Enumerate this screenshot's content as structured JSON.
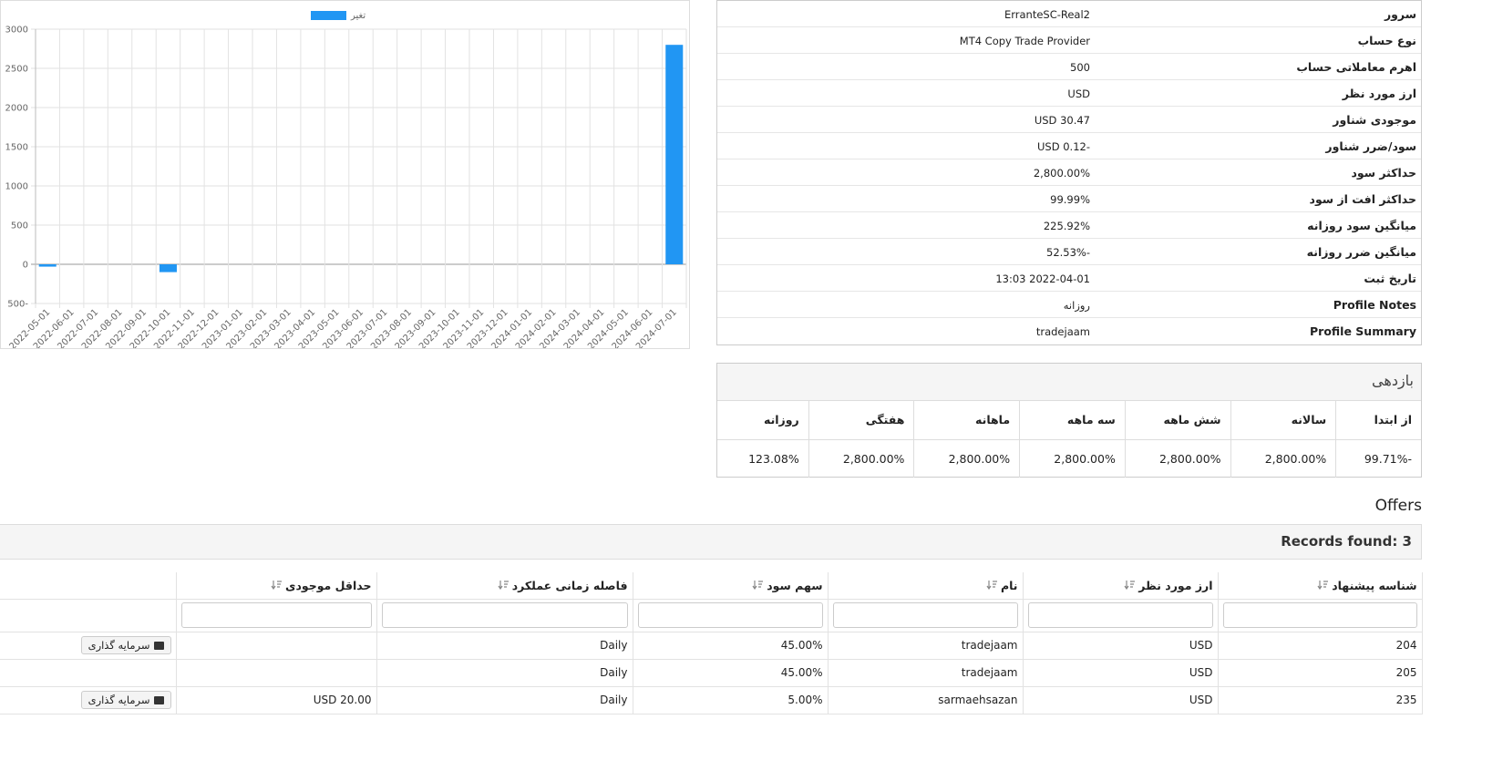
{
  "chart_data": {
    "type": "bar",
    "categories": [
      "2022-05-01",
      "2022-06-01",
      "2022-07-01",
      "2022-08-01",
      "2022-09-01",
      "2022-10-01",
      "2022-11-01",
      "2022-12-01",
      "2023-01-01",
      "2023-02-01",
      "2023-03-01",
      "2023-04-01",
      "2023-05-01",
      "2023-06-01",
      "2023-07-01",
      "2023-08-01",
      "2023-09-01",
      "2023-10-01",
      "2023-11-01",
      "2023-12-01",
      "2024-01-01",
      "2024-02-01",
      "2024-03-01",
      "2024-04-01",
      "2024-05-01",
      "2024-06-01",
      "2024-07-01"
    ],
    "series": [
      {
        "name": "تغیر",
        "color": "#2196f3",
        "values": [
          -30,
          0,
          0,
          0,
          0,
          -100,
          0,
          0,
          0,
          0,
          0,
          0,
          0,
          0,
          0,
          0,
          0,
          0,
          0,
          0,
          0,
          0,
          0,
          0,
          0,
          0,
          2800
        ]
      }
    ],
    "ylim": [
      -500,
      3000
    ],
    "yticks": [
      {
        "value": -500,
        "label": "500-"
      },
      0,
      500,
      1000,
      1500,
      2000,
      2500,
      3000
    ],
    "grid": true,
    "legend": "top"
  },
  "account": {
    "rows": [
      {
        "label": "سرور",
        "value": "ErranteSC-Real2"
      },
      {
        "label": "نوع حساب",
        "value": "MT4 Copy Trade Provider"
      },
      {
        "label": "اهرم معاملاتی حساب",
        "value": "500"
      },
      {
        "label": "ارز مورد نظر",
        "value": "USD"
      },
      {
        "label": "موجودی شناور",
        "value": "USD 30.47"
      },
      {
        "label": "سود/ضرر شناور",
        "value": "USD 0.12-"
      },
      {
        "label": "حداکثر سود",
        "value": "2,800.00%"
      },
      {
        "label": "حداکثر افت از سود",
        "value": "99.99%"
      },
      {
        "label": "میانگین سود روزانه",
        "value": "225.92%"
      },
      {
        "label": "میانگین ضرر روزانه",
        "value": "52.53%-"
      },
      {
        "label": "تاریخ ثبت",
        "value": "13:03 2022-04-01"
      },
      {
        "label": "Profile Notes",
        "value": "روزانه"
      },
      {
        "label": "Profile Summary",
        "value": "tradejaam"
      }
    ]
  },
  "returns": {
    "title": "بازدهی",
    "headers": [
      "از ابتدا",
      "سالانه",
      "شش ماهه",
      "سه ماهه",
      "ماهانه",
      "هفتگی",
      "روزانه"
    ],
    "values": [
      "99.71%-",
      "2,800.00%",
      "2,800.00%",
      "2,800.00%",
      "2,800.00%",
      "2,800.00%",
      "123.08%"
    ]
  },
  "offers": {
    "title": "Offers",
    "records": "Records found: 3",
    "headers": [
      "شناسه پیشنهاد",
      "ارز مورد نظر",
      "نام",
      "سهم سود",
      "فاصله زمانی عملکرد",
      "حداقل موجودی"
    ],
    "rows": [
      {
        "id": "204",
        "currency": "USD",
        "name": "tradejaam",
        "share": "45.00%",
        "period": "Daily",
        "action": "سرمایه گذاری"
      },
      {
        "id": "205",
        "currency": "USD",
        "name": "tradejaam",
        "share": "45.00%",
        "period": "Daily"
      },
      {
        "id": "235",
        "currency": "USD",
        "name": "sarmaehsazan",
        "share": "5.00%",
        "period": "Daily",
        "min_balance": "USD 20.00",
        "action": "سرمایه گذاری"
      }
    ]
  }
}
